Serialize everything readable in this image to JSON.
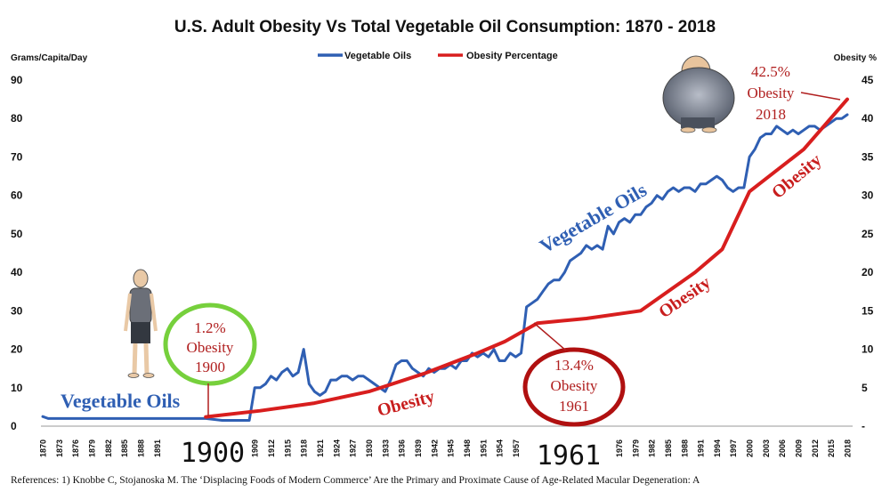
{
  "chart_data": {
    "type": "line",
    "title": "U.S. Adult Obesity Vs Total Vegetable Oil Consumption: 1870 - 2018",
    "ylabel_left": "Grams/Capita/Day",
    "ylabel_right": "Obesity %",
    "ylim_left": [
      0,
      90
    ],
    "ylim_right": [
      0,
      45
    ],
    "yticks_left": [
      "0",
      "10",
      "20",
      "30",
      "40",
      "50",
      "60",
      "70",
      "80",
      "90"
    ],
    "yticks_right": [
      "-",
      "5",
      "10",
      "15",
      "20",
      "25",
      "30",
      "35",
      "40",
      "45"
    ],
    "xlim": [
      1870,
      2018
    ],
    "xticks": [
      "1870",
      "1873",
      "1876",
      "1879",
      "1882",
      "1885",
      "1888",
      "1891",
      "1909",
      "1912",
      "1915",
      "1918",
      "1921",
      "1924",
      "1927",
      "1930",
      "1933",
      "1936",
      "1939",
      "1942",
      "1945",
      "1948",
      "1951",
      "1954",
      "1957",
      "1976",
      "1979",
      "1982",
      "1985",
      "1988",
      "1991",
      "1994",
      "1997",
      "2000",
      "2003",
      "2006",
      "2009",
      "2012",
      "2015",
      "2018"
    ],
    "legend": "top-center",
    "grid": false,
    "colors": {
      "vegetable_oils": "#2f5fb3",
      "obesity": "#d81e1e",
      "annotation_text": "#b01e1e",
      "green_ring": "#76d03c",
      "dark_red_ring": "#b01010"
    },
    "series": [
      {
        "name": "Vegetable Oils",
        "axis": "left",
        "x": [
          1870,
          1871,
          1900,
          1903,
          1904,
          1905,
          1906,
          1907,
          1908,
          1909,
          1910,
          1911,
          1912,
          1913,
          1914,
          1915,
          1916,
          1917,
          1918,
          1919,
          1920,
          1921,
          1922,
          1923,
          1924,
          1925,
          1926,
          1927,
          1928,
          1929,
          1930,
          1931,
          1932,
          1933,
          1934,
          1935,
          1936,
          1937,
          1938,
          1939,
          1940,
          1941,
          1942,
          1943,
          1944,
          1945,
          1946,
          1947,
          1948,
          1949,
          1950,
          1951,
          1952,
          1953,
          1954,
          1955,
          1956,
          1957,
          1958,
          1959,
          1960,
          1961,
          1962,
          1963,
          1964,
          1965,
          1966,
          1967,
          1968,
          1969,
          1970,
          1971,
          1972,
          1973,
          1974,
          1975,
          1976,
          1977,
          1978,
          1979,
          1980,
          1981,
          1982,
          1983,
          1984,
          1985,
          1986,
          1987,
          1988,
          1989,
          1990,
          1991,
          1992,
          1993,
          1994,
          1995,
          1996,
          1997,
          1998,
          1999,
          2000,
          2001,
          2002,
          2003,
          2004,
          2005,
          2006,
          2007,
          2008,
          2009,
          2010,
          2011,
          2012,
          2013,
          2014,
          2015,
          2016,
          2017,
          2018
        ],
        "y": [
          2.5,
          2,
          2,
          1.5,
          1.5,
          1.5,
          1.5,
          1.5,
          1.5,
          10,
          10,
          11,
          13,
          12,
          14,
          15,
          13,
          14,
          20,
          11,
          9,
          8,
          9,
          12,
          12,
          13,
          13,
          12,
          13,
          13,
          12,
          11,
          10,
          9,
          12,
          16,
          17,
          17,
          15,
          14,
          13,
          15,
          14,
          15,
          15,
          16,
          15,
          17,
          17,
          19,
          18,
          19,
          18,
          20,
          17,
          17,
          19,
          18,
          19,
          31,
          32,
          33,
          35,
          37,
          38,
          38,
          40,
          43,
          44,
          45,
          47,
          46,
          47,
          46,
          52,
          50,
          53,
          54,
          53,
          55,
          55,
          57,
          58,
          60,
          59,
          61,
          62,
          61,
          62,
          62,
          61,
          63,
          63,
          64,
          65,
          64,
          62,
          61,
          62,
          62,
          70,
          72,
          75,
          76,
          76,
          78,
          77,
          76,
          77,
          76,
          77,
          78,
          78,
          77,
          78,
          79,
          80,
          80,
          81
        ]
      },
      {
        "name": "Obesity Percentage",
        "axis": "right",
        "x": [
          1900,
          1910,
          1920,
          1930,
          1940,
          1950,
          1955,
          1961,
          1970,
          1980,
          1990,
          1995,
          2000,
          2010,
          2018
        ],
        "y": [
          1.2,
          2,
          3,
          4.5,
          6.8,
          9.5,
          11,
          13.4,
          14,
          15,
          20,
          23,
          30.5,
          36,
          42.5
        ]
      }
    ],
    "annotations": {
      "obesity_1900": [
        "1.2%",
        "Obesity",
        "1900"
      ],
      "obesity_1961": [
        "13.4%",
        "Obesity",
        "1961"
      ],
      "obesity_2018": [
        "42.5%",
        "Obesity",
        "2018"
      ],
      "big_year_left": "1900",
      "big_year_right": "1961",
      "veg_oils_low": "Vegetable Oils",
      "veg_oils_high": "Vegetable Oils",
      "obesity_label": "Obesity"
    },
    "references": "References: 1) Knobbe C,  Stojanoska M. The ‘Displacing Foods of Modern Commerce’ Are the Primary and Proximate Cause of Age-Related Macular Degeneration: A"
  }
}
